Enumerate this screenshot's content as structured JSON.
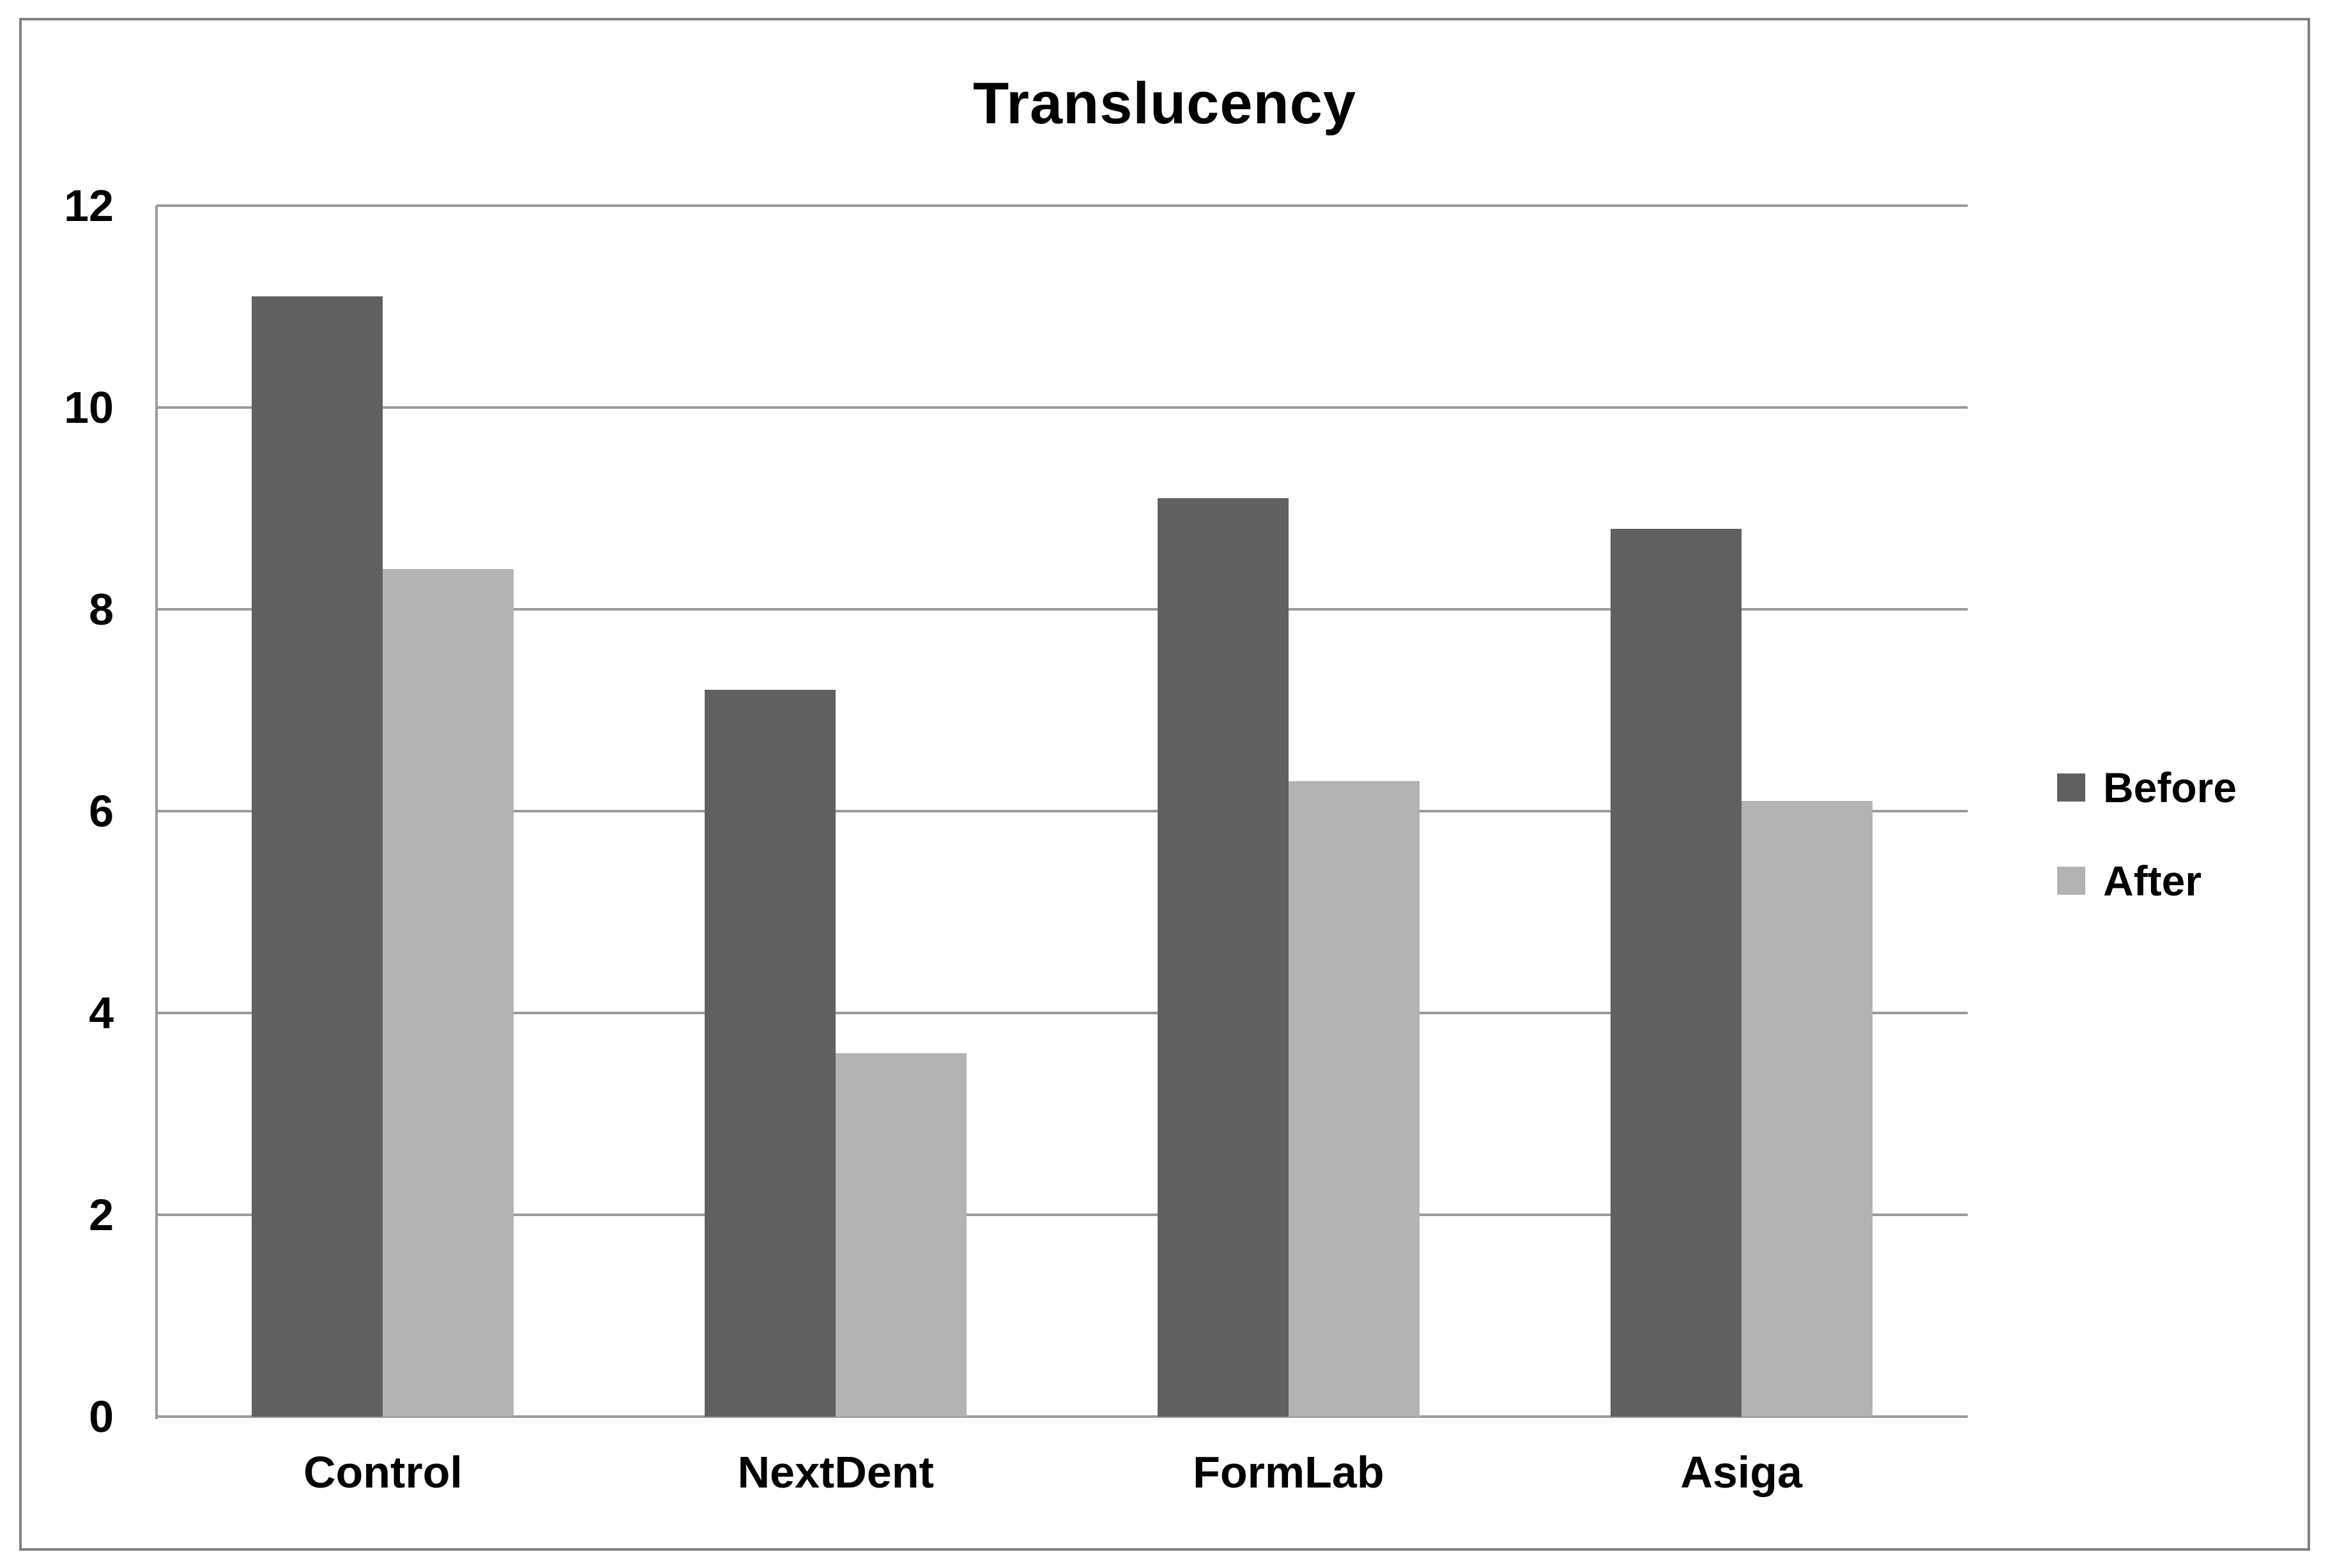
{
  "figure": {
    "background": "#ffffff",
    "border_color": "#808080"
  },
  "chart_data": {
    "type": "bar",
    "title": "Translucency",
    "categories": [
      "Control",
      "NextDent",
      "FormLab",
      "Asiga"
    ],
    "series": [
      {
        "name": "Before",
        "color": "#606060",
        "values": [
          11.1,
          7.2,
          9.1,
          8.8
        ]
      },
      {
        "name": "After",
        "color": "#b3b3b3",
        "values": [
          8.4,
          3.6,
          6.3,
          6.1
        ]
      }
    ],
    "xlabel": "",
    "ylabel": "",
    "ylim": [
      0,
      12
    ],
    "yticks": [
      0,
      2,
      4,
      6,
      8,
      10,
      12
    ],
    "grid": "horizontal",
    "gridline_color": "#9a9a9a",
    "axis_line_color": "#9a9a9a",
    "text_color": "#000000",
    "legend_position": "right",
    "legend": [
      "Before",
      "After"
    ]
  }
}
